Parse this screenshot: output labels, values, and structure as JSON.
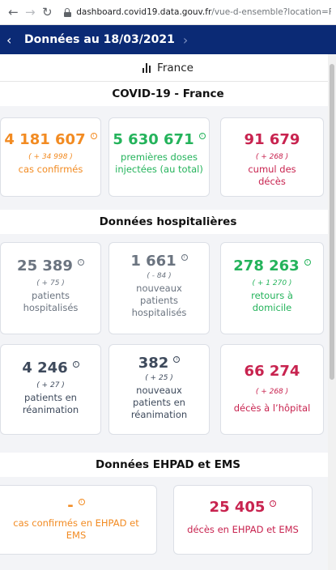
{
  "browser": {
    "url_host": "dashboard.covid19.data.gouv.fr",
    "url_path": "/vue-d-ensemble?location=FRA"
  },
  "header": {
    "title": "Données au 18/03/2021"
  },
  "region": {
    "label": "France"
  },
  "sections": {
    "france": "COVID-19 - France",
    "hospital": "Données hospitalières",
    "ehpad": "Données EHPAD et EMS"
  },
  "cards": {
    "confirmed": {
      "value": "4 181 607",
      "delta": "( + 34 998 )",
      "label": "cas confirmés"
    },
    "first_doses": {
      "value": "5 630 671",
      "label": "premières doses injectées (au total)"
    },
    "deaths_total": {
      "value": "91 679",
      "delta": "( + 268 )",
      "label": "cumul des décès"
    },
    "hospitalized": {
      "value": "25 389",
      "delta": "( + 75 )",
      "label": "patients hospitalisés"
    },
    "new_hospitalized": {
      "value": "1 661",
      "delta": "( - 84 )",
      "label": "nouveaux patients hospitalisés"
    },
    "returned_home": {
      "value": "278 263",
      "delta": "( + 1 270 )",
      "label": "retours à domicile"
    },
    "icu": {
      "value": "4 246",
      "delta": "( + 27 )",
      "label": "patients en réanimation"
    },
    "new_icu": {
      "value": "382",
      "delta": "( + 25 )",
      "label": "nouveaux patients en réanimation"
    },
    "hospital_deaths": {
      "value": "66 274",
      "delta": "( + 268 )",
      "label": "décès à l’hôpital"
    },
    "ehpad_cases": {
      "value": "-",
      "label": "cas confirmés en EHPAD et EMS"
    },
    "ehpad_deaths": {
      "value": "25 405",
      "label": "décès en EHPAD et EMS"
    }
  },
  "colors": {
    "orange": "#f28b22",
    "green": "#24b35b",
    "red": "#c8234f",
    "grey": "#6b7480",
    "navy": "#0b2a75"
  }
}
